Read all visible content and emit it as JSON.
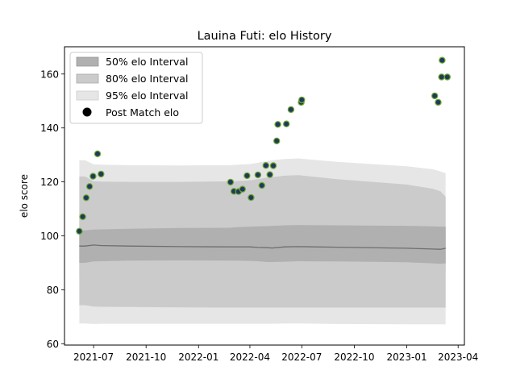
{
  "chart_data": {
    "type": "scatter",
    "title": "Lauina Futi: elo History",
    "xlabel": "",
    "ylabel": "elo score",
    "xlim": [
      "2021-05-11",
      "2023-04-12"
    ],
    "ylim": [
      59.5,
      170.1
    ],
    "x_ticks": [
      "2021-07",
      "2021-10",
      "2022-01",
      "2022-04",
      "2022-07",
      "2022-10",
      "2023-01",
      "2023-04"
    ],
    "y_ticks": [
      60,
      80,
      100,
      120,
      140,
      160
    ],
    "grid": false,
    "legend_position": "top-left",
    "legend": [
      "50% elo Interval",
      "80% elo Interval",
      "95% elo Interval",
      "Post Match elo"
    ],
    "colors": {
      "band50": "#b0b0b0",
      "band80": "#cbcbcb",
      "band95": "#e6e6e6",
      "median_line": "#6e6e6e",
      "marker_fill": "#1f3b5a",
      "marker_edge": "#6fa832"
    },
    "interval_dates": [
      "2021-06-06",
      "2021-06-16",
      "2021-07-01",
      "2021-07-15",
      "2021-09-01",
      "2021-12-01",
      "2022-02-25",
      "2022-03-10",
      "2022-04-01",
      "2022-04-15",
      "2022-05-01",
      "2022-05-10",
      "2022-06-01",
      "2022-06-25",
      "2022-09-01",
      "2023-01-01",
      "2023-02-15",
      "2023-03-01",
      "2023-03-10"
    ],
    "intervals": {
      "median": [
        96.2,
        96.2,
        96.6,
        96.4,
        96.2,
        96.0,
        95.9,
        95.9,
        95.9,
        95.7,
        95.6,
        95.5,
        95.9,
        96.0,
        95.8,
        95.4,
        95.1,
        95.0,
        95.4
      ],
      "p50_low": [
        90.0,
        90.0,
        90.5,
        90.6,
        90.8,
        90.9,
        90.8,
        90.8,
        90.7,
        90.6,
        90.3,
        90.3,
        90.4,
        90.6,
        90.5,
        90.2,
        89.8,
        89.6,
        89.8
      ],
      "p50_high": [
        102.0,
        102.0,
        102.3,
        102.4,
        102.6,
        102.9,
        103.0,
        103.2,
        103.4,
        103.5,
        103.6,
        103.7,
        103.9,
        104.0,
        103.9,
        103.7,
        103.5,
        103.4,
        103.4
      ],
      "p80_low": [
        84.5,
        84.5,
        85.0,
        85.2,
        85.4,
        85.6,
        85.7,
        85.8,
        85.9,
        86.0,
        86.1,
        86.2,
        86.4,
        86.5,
        86.5,
        86.5,
        86.5,
        86.5,
        86.5
      ],
      "p80_high": [
        108.5,
        108.5,
        107.8,
        107.6,
        107.2,
        106.9,
        106.6,
        106.5,
        106.4,
        106.3,
        106.2,
        106.2,
        106.2,
        106.1,
        105.6,
        104.8,
        104.4,
        104.0,
        103.4
      ],
      "p95_low": [
        67.5,
        67.5,
        67.3,
        67.4,
        67.4,
        67.4,
        67.4,
        67.4,
        67.4,
        67.4,
        67.4,
        67.4,
        67.5,
        67.5,
        67.3,
        67.2,
        67.2,
        67.2,
        67.2
      ],
      "p95_high": [
        128.0,
        128.0,
        126.5,
        126.4,
        126.2,
        126.1,
        126.2,
        126.4,
        126.6,
        127.1,
        127.7,
        128.0,
        128.5,
        128.7,
        127.4,
        125.8,
        124.7,
        123.9,
        123.2
      ],
      "p80b_low": [
        74.3,
        74.3,
        73.8,
        73.7,
        73.6,
        73.5,
        73.4,
        73.4,
        73.4,
        73.4,
        73.4,
        73.4,
        73.4,
        73.4,
        73.4,
        73.4,
        73.4,
        73.4,
        73.4
      ],
      "p80b_high": [
        122.0,
        122.0,
        120.2,
        120.1,
        120.0,
        120.0,
        120.2,
        120.3,
        120.6,
        121.0,
        121.6,
        121.8,
        122.3,
        122.5,
        121.0,
        119.0,
        117.5,
        116.5,
        114.5
      ]
    },
    "points": [
      {
        "x": "2021-06-06",
        "y": 101.7
      },
      {
        "x": "2021-06-12",
        "y": 107.1
      },
      {
        "x": "2021-06-18",
        "y": 114.1
      },
      {
        "x": "2021-06-24",
        "y": 118.3
      },
      {
        "x": "2021-06-30",
        "y": 122.1
      },
      {
        "x": "2021-07-08",
        "y": 130.4
      },
      {
        "x": "2021-07-14",
        "y": 122.9
      },
      {
        "x": "2022-02-26",
        "y": 119.9
      },
      {
        "x": "2022-03-04",
        "y": 116.5
      },
      {
        "x": "2022-03-12",
        "y": 116.4
      },
      {
        "x": "2022-03-19",
        "y": 117.3
      },
      {
        "x": "2022-03-27",
        "y": 122.3
      },
      {
        "x": "2022-04-03",
        "y": 114.2
      },
      {
        "x": "2022-04-15",
        "y": 122.6
      },
      {
        "x": "2022-04-22",
        "y": 118.7
      },
      {
        "x": "2022-04-29",
        "y": 126.1
      },
      {
        "x": "2022-05-06",
        "y": 122.7
      },
      {
        "x": "2022-05-12",
        "y": 126.0
      },
      {
        "x": "2022-05-18",
        "y": 135.2
      },
      {
        "x": "2022-05-20",
        "y": 141.3
      },
      {
        "x": "2022-06-04",
        "y": 141.5
      },
      {
        "x": "2022-06-12",
        "y": 146.8
      },
      {
        "x": "2022-06-30",
        "y": 149.5
      },
      {
        "x": "2022-07-01",
        "y": 150.4
      },
      {
        "x": "2023-02-19",
        "y": 151.9
      },
      {
        "x": "2023-02-25",
        "y": 149.5
      },
      {
        "x": "2023-03-03",
        "y": 158.9
      },
      {
        "x": "2023-03-04",
        "y": 165.1
      },
      {
        "x": "2023-03-13",
        "y": 158.9
      }
    ]
  }
}
